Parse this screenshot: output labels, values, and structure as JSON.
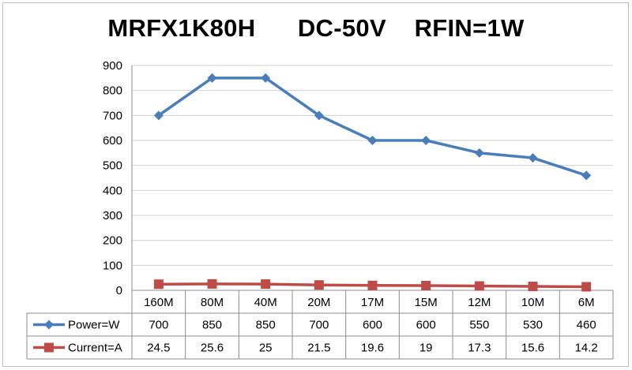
{
  "chart_data": {
    "type": "line",
    "title": "MRFX1K80H      DC-50V    RFIN=1W",
    "categories": [
      "160M",
      "80M",
      "40M",
      "20M",
      "17M",
      "15M",
      "12M",
      "10M",
      "6M"
    ],
    "ylim": [
      0,
      900
    ],
    "yticks": [
      0,
      100,
      200,
      300,
      400,
      500,
      600,
      700,
      800,
      900
    ],
    "grid": true,
    "legend": "data-table-below",
    "series": [
      {
        "name": "Power=W",
        "color": "#4a7ebb",
        "marker": "diamond",
        "values": [
          700,
          850,
          850,
          700,
          600,
          600,
          550,
          530,
          460
        ],
        "labels": [
          "700",
          "850",
          "850",
          "700",
          "600",
          "600",
          "550",
          "530",
          "460"
        ]
      },
      {
        "name": "Current=A",
        "color": "#be4b48",
        "marker": "square",
        "values": [
          24.5,
          25.6,
          25,
          21.5,
          19.6,
          19,
          17.3,
          15.6,
          14.2
        ],
        "labels": [
          "24.5",
          "25.6",
          "25",
          "21.5",
          "19.6",
          "19",
          "17.3",
          "15.6",
          "14.2"
        ]
      }
    ]
  }
}
